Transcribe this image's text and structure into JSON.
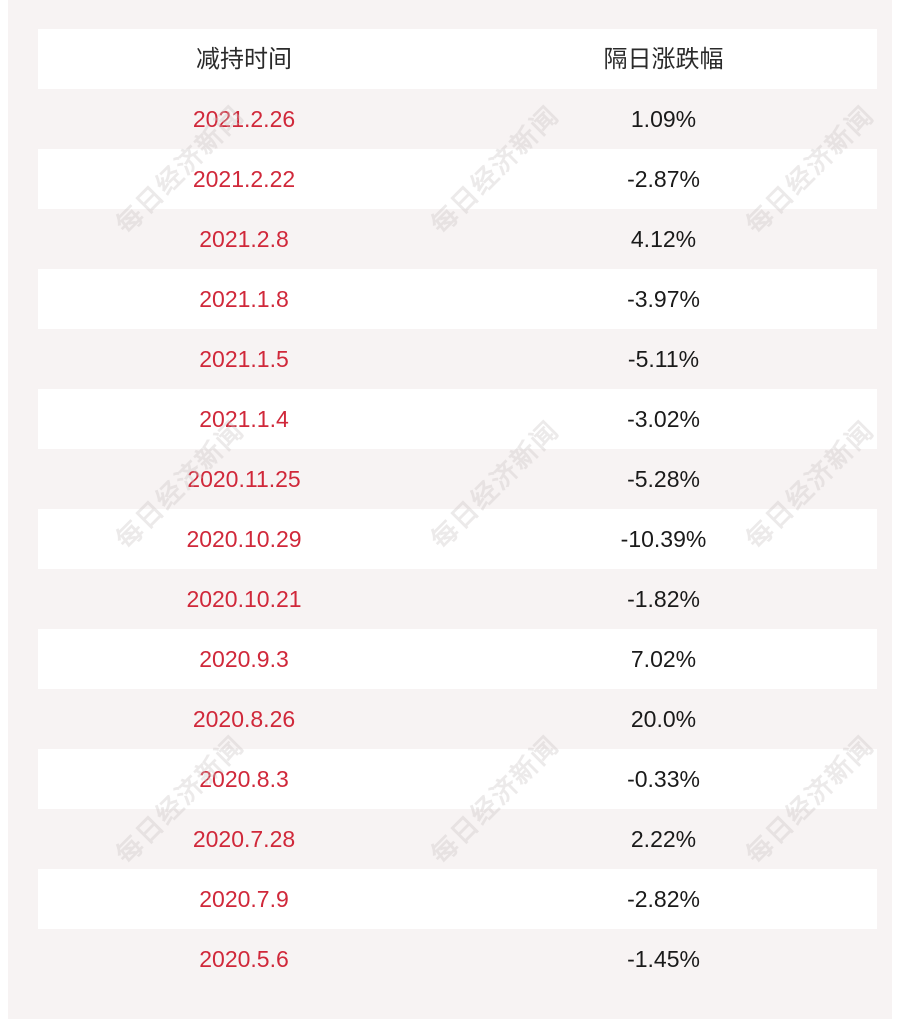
{
  "table": {
    "headers": [
      "减持时间",
      "隔日涨跌幅"
    ],
    "rows": [
      {
        "date": "2021.2.26",
        "change": "1.09%"
      },
      {
        "date": "2021.2.22",
        "change": "-2.87%"
      },
      {
        "date": "2021.2.8",
        "change": "4.12%"
      },
      {
        "date": "2021.1.8",
        "change": "-3.97%"
      },
      {
        "date": "2021.1.5",
        "change": "-5.11%"
      },
      {
        "date": "2021.1.4",
        "change": "-3.02%"
      },
      {
        "date": "2020.11.25",
        "change": "-5.28%"
      },
      {
        "date": "2020.10.29",
        "change": "-10.39%"
      },
      {
        "date": "2020.10.21",
        "change": "-1.82%"
      },
      {
        "date": "2020.9.3",
        "change": "7.02%"
      },
      {
        "date": "2020.8.26",
        "change": "20.0%"
      },
      {
        "date": "2020.8.3",
        "change": "-0.33%"
      },
      {
        "date": "2020.7.28",
        "change": "2.22%"
      },
      {
        "date": "2020.7.9",
        "change": "-2.82%"
      },
      {
        "date": "2020.5.6",
        "change": "-1.45%"
      }
    ]
  },
  "watermark": "每日经济新闻",
  "colors": {
    "date_text": "#d0283a",
    "background_tint": "#f7f3f3"
  }
}
